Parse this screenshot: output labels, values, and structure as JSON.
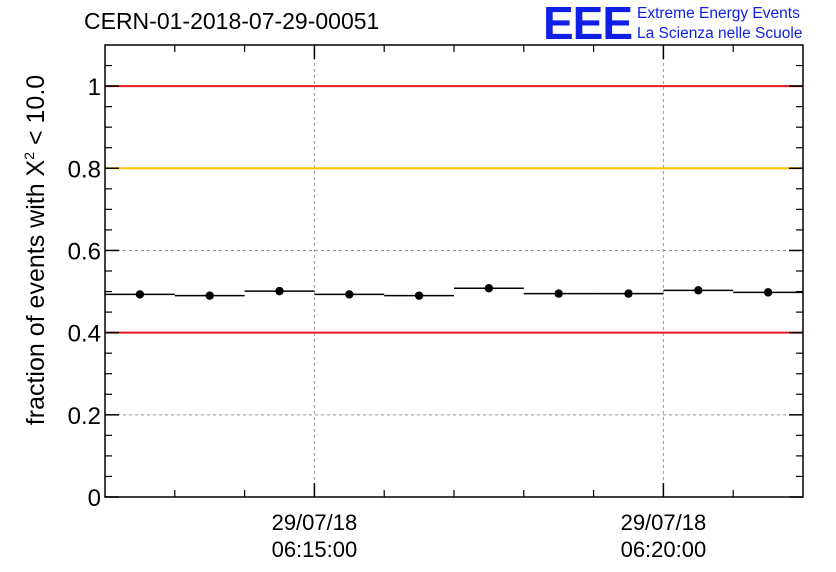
{
  "chart_data": {
    "type": "scatter",
    "title": "CERN-01-2018-07-29-00051",
    "ylabel_prefix": "fraction of events with ",
    "ylabel_symbol": "X",
    "ylabel_power": "2",
    "ylabel_suffix": " < 10.0",
    "ylim": [
      0,
      1.1
    ],
    "yticks": [
      {
        "value": 0,
        "label": "0"
      },
      {
        "value": 0.2,
        "label": "0.2"
      },
      {
        "value": 0.4,
        "label": "0.4"
      },
      {
        "value": 0.6,
        "label": "0.6"
      },
      {
        "value": 0.8,
        "label": "0.8"
      },
      {
        "value": 1,
        "label": "1"
      }
    ],
    "xlim_minutes": [
      0,
      10
    ],
    "xticks": [
      {
        "minute": 3,
        "date": "29/07/18",
        "time": "06:15:00"
      },
      {
        "minute": 8,
        "date": "29/07/18",
        "time": "06:20:00"
      }
    ],
    "grid": true,
    "reference_lines": [
      {
        "value": 1.0,
        "color": "#e41a1c"
      },
      {
        "value": 0.8,
        "color": "#ffc000"
      },
      {
        "value": 0.4,
        "color": "#e41a1c"
      }
    ],
    "bin_width_minutes": 1,
    "points": [
      {
        "x": 0.5,
        "y": 0.493
      },
      {
        "x": 1.5,
        "y": 0.49
      },
      {
        "x": 2.5,
        "y": 0.501
      },
      {
        "x": 3.5,
        "y": 0.493
      },
      {
        "x": 4.5,
        "y": 0.49
      },
      {
        "x": 5.5,
        "y": 0.508
      },
      {
        "x": 6.5,
        "y": 0.495
      },
      {
        "x": 7.5,
        "y": 0.495
      },
      {
        "x": 8.5,
        "y": 0.503
      },
      {
        "x": 9.5,
        "y": 0.498
      }
    ]
  },
  "logo": {
    "mark": "EEE",
    "line1": "Extreme Energy Events",
    "line2": "La Scienza nelle Scuole",
    "color": "#0f1fe6"
  }
}
